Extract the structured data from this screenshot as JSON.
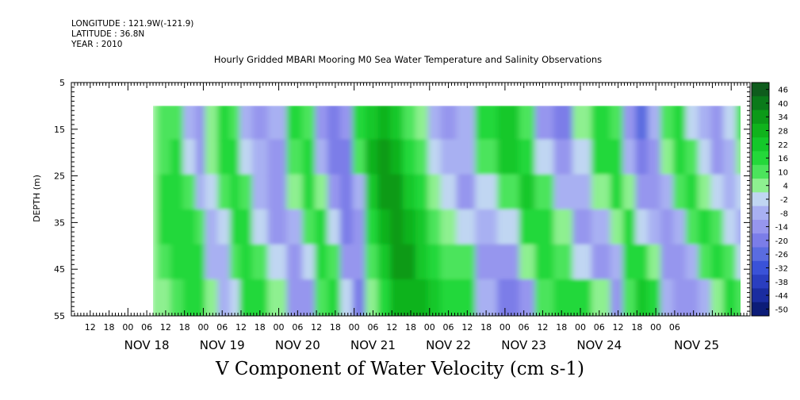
{
  "header": {
    "longitude": "LONGITUDE : 121.9W(-121.9)",
    "latitude": "LATITUDE : 36.8N",
    "year": "YEAR : 2010"
  },
  "chart_data": {
    "type": "heatmap",
    "title": "Hourly Gridded MBARI Mooring M0 Sea Water Temperature and Salinity Observations",
    "xlabel": "V Component of Water Velocity (cm s-1)",
    "ylabel": "DEPTH (m)",
    "ylim": [
      5,
      55
    ],
    "y_inverted": true,
    "yticks": [
      5,
      15,
      25,
      35,
      45,
      55
    ],
    "xlim_hours": [
      -18,
      198
    ],
    "data_start_hour": 8,
    "data_depth_top": 10,
    "hour_ticks": [
      "12",
      "18",
      "00",
      "06",
      "12",
      "18",
      "00",
      "06",
      "12",
      "18",
      "00",
      "06",
      "12",
      "18",
      "00",
      "06",
      "12",
      "18",
      "00",
      "06",
      "12",
      "18",
      "00",
      "06",
      "12",
      "18",
      "00",
      "06",
      "12",
      "18",
      "00",
      "06"
    ],
    "date_labels": [
      "NOV 18",
      "NOV 19",
      "NOV 20",
      "NOV 21",
      "NOV 22",
      "NOV 23",
      "NOV 24",
      "NOV 25"
    ],
    "colorbar": {
      "levels": [
        46,
        40,
        34,
        28,
        22,
        16,
        10,
        4,
        -2,
        -8,
        -14,
        -20,
        -26,
        -32,
        -38,
        -44,
        -50
      ],
      "labels": [
        "46",
        "40",
        "34",
        "28",
        "22",
        "16",
        "10",
        "4",
        "-2",
        "-8",
        "-14",
        "-20",
        "-26",
        "-32",
        "-38",
        "-44",
        "-50"
      ],
      "colors": [
        "#0e5c1c",
        "#0a7a1a",
        "#0c9a18",
        "#10b31c",
        "#14c82a",
        "#24d83a",
        "#4ce45c",
        "#8ef090",
        "#c0d6f2",
        "#a8b0f2",
        "#9696ee",
        "#7b7de8",
        "#5a6ce0",
        "#3a52d8",
        "#2a3ec0",
        "#1a2ca0",
        "#0c1c78"
      ]
    },
    "column_times_hours": [
      8,
      10,
      14,
      18,
      22,
      25,
      29,
      33,
      36,
      40,
      45,
      51,
      56,
      60,
      64,
      68,
      72,
      76,
      80,
      84,
      88,
      92,
      96,
      100,
      105,
      111,
      118,
      125,
      130,
      136,
      142,
      148,
      154,
      158,
      162,
      166,
      170,
      174,
      178,
      182,
      186,
      190,
      194
    ],
    "columns": [
      [
        4,
        4,
        4,
        4,
        4,
        4
      ],
      [
        10,
        10,
        16,
        16,
        10,
        4
      ],
      [
        10,
        16,
        16,
        16,
        16,
        10
      ],
      [
        -8,
        -2,
        10,
        16,
        16,
        16
      ],
      [
        -14,
        -14,
        -8,
        10,
        16,
        16
      ],
      [
        4,
        4,
        -2,
        -8,
        -8,
        4
      ],
      [
        16,
        16,
        10,
        -2,
        -8,
        -8
      ],
      [
        10,
        16,
        16,
        16,
        10,
        -2
      ],
      [
        -8,
        -2,
        10,
        16,
        16,
        16
      ],
      [
        -14,
        -8,
        -8,
        -2,
        10,
        16
      ],
      [
        -8,
        -14,
        -14,
        -14,
        -2,
        4
      ],
      [
        16,
        10,
        4,
        -8,
        -14,
        -14
      ],
      [
        10,
        16,
        16,
        10,
        -2,
        -14
      ],
      [
        -14,
        -8,
        4,
        16,
        16,
        10
      ],
      [
        -20,
        -20,
        -14,
        -2,
        10,
        16
      ],
      [
        -14,
        -20,
        -20,
        -20,
        -14,
        -2
      ],
      [
        16,
        10,
        -8,
        -14,
        -14,
        -20
      ],
      [
        22,
        28,
        22,
        16,
        10,
        4
      ],
      [
        28,
        34,
        34,
        28,
        22,
        16
      ],
      [
        22,
        28,
        34,
        34,
        34,
        28
      ],
      [
        10,
        16,
        22,
        28,
        34,
        28
      ],
      [
        4,
        10,
        16,
        22,
        22,
        28
      ],
      [
        -8,
        -2,
        4,
        10,
        16,
        22
      ],
      [
        -14,
        -8,
        -2,
        4,
        10,
        16
      ],
      [
        -8,
        -8,
        -14,
        -2,
        10,
        16
      ],
      [
        16,
        10,
        -2,
        -8,
        -14,
        -8
      ],
      [
        22,
        22,
        10,
        -2,
        -14,
        -20
      ],
      [
        10,
        16,
        22,
        16,
        4,
        -14
      ],
      [
        -14,
        -2,
        10,
        16,
        16,
        10
      ],
      [
        -20,
        -14,
        -8,
        4,
        10,
        16
      ],
      [
        4,
        -2,
        -8,
        -14,
        -2,
        16
      ],
      [
        16,
        16,
        4,
        -8,
        -14,
        4
      ],
      [
        10,
        16,
        16,
        4,
        -8,
        -14
      ],
      [
        -14,
        -8,
        4,
        16,
        16,
        10
      ],
      [
        -26,
        -20,
        -14,
        -2,
        16,
        22
      ],
      [
        -8,
        -14,
        -14,
        -8,
        4,
        16
      ],
      [
        10,
        4,
        -8,
        -14,
        -14,
        -8
      ],
      [
        16,
        16,
        10,
        -8,
        -14,
        -14
      ],
      [
        -2,
        10,
        16,
        10,
        -8,
        -14
      ],
      [
        -8,
        -2,
        4,
        16,
        10,
        -8
      ],
      [
        -14,
        -14,
        -2,
        10,
        16,
        4
      ],
      [
        -2,
        -8,
        -8,
        -2,
        10,
        16
      ],
      [
        10,
        4,
        -2,
        -8,
        -2,
        10
      ]
    ]
  }
}
